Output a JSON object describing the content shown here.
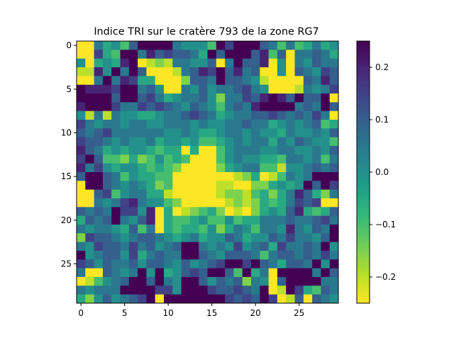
{
  "chart_data": {
    "type": "heatmap",
    "title": "Indice TRI sur le cratère 793 de la zone RG7",
    "xlabel": "",
    "ylabel": "",
    "rows": 30,
    "cols": 30,
    "x_ticks": [
      0,
      5,
      10,
      15,
      20,
      25
    ],
    "y_ticks": [
      0,
      5,
      10,
      15,
      20,
      25
    ],
    "colormap": "viridis_r",
    "vmin": -0.25,
    "vmax": 0.25,
    "colorbar": {
      "ticks": [
        0.2,
        0.1,
        0.0,
        -0.1,
        -0.2
      ],
      "tick_labels": [
        "0.2",
        "0.1",
        "0.0",
        "−0.1",
        "−0.2"
      ]
    },
    "values": [
      [
        -0.25,
        -0.25,
        0.05,
        -0.05,
        0.0,
        -0.1,
        0.1,
        0.25,
        0.25,
        0.25,
        0.25,
        0.05,
        0.0,
        0.0,
        0.0,
        -0.1,
        0.25,
        0.15,
        0.25,
        0.25,
        0.25,
        0.1,
        0.05,
        -0.1,
        0.05,
        -0.1,
        -0.05,
        0.05,
        -0.05,
        0.0
      ],
      [
        -0.25,
        -0.25,
        0.15,
        -0.05,
        -0.1,
        0.25,
        0.25,
        0.05,
        0.2,
        0.1,
        0.15,
        0.1,
        0.1,
        0.05,
        -0.05,
        0.25,
        0.1,
        0.25,
        0.25,
        0.25,
        0.1,
        0.2,
        -0.1,
        0.1,
        -0.25,
        0.05,
        0.05,
        0.1,
        0.05,
        -0.05
      ],
      [
        0.0,
        -0.25,
        -0.05,
        0.0,
        -0.05,
        0.2,
        0.25,
        -0.25,
        -0.2,
        -0.15,
        -0.2,
        0.05,
        0.05,
        0.0,
        0.0,
        0.1,
        -0.25,
        0.05,
        0.25,
        0.1,
        0.1,
        0.2,
        -0.25,
        0.0,
        -0.25,
        0.05,
        0.0,
        0.1,
        0.05,
        0.05
      ],
      [
        -0.2,
        -0.2,
        0.2,
        0.0,
        0.25,
        0.05,
        0.25,
        0.1,
        -0.25,
        -0.25,
        -0.25,
        -0.2,
        0.05,
        0.1,
        0.2,
        0.15,
        0.25,
        0.1,
        0.2,
        0.05,
        0.1,
        -0.25,
        -0.25,
        0.0,
        -0.25,
        0.1,
        0.05,
        0.0,
        0.15,
        0.1
      ],
      [
        -0.25,
        -0.25,
        0.05,
        0.25,
        0.05,
        0.2,
        0.15,
        -0.05,
        -0.05,
        -0.25,
        -0.25,
        -0.25,
        -0.15,
        0.1,
        0.1,
        0.05,
        0.25,
        0.1,
        0.1,
        0.05,
        0.0,
        -0.2,
        -0.25,
        -0.25,
        -0.25,
        -0.25,
        0.1,
        0.05,
        0.2,
        0.1
      ],
      [
        0.25,
        0.2,
        0.2,
        0.2,
        0.15,
        0.25,
        0.25,
        0.05,
        0.1,
        0.0,
        -0.25,
        -0.25,
        0.05,
        0.0,
        0.1,
        0.0,
        0.05,
        0.05,
        0.1,
        0.15,
        0.05,
        0.0,
        -0.25,
        -0.25,
        -0.25,
        -0.2,
        0.05,
        0.0,
        0.05,
        0.15
      ],
      [
        0.25,
        0.25,
        0.25,
        0.25,
        0.1,
        0.25,
        0.25,
        0.1,
        0.15,
        0.05,
        -0.05,
        0.0,
        0.05,
        0.05,
        0.1,
        0.0,
        -0.15,
        0.05,
        0.05,
        0.15,
        0.1,
        0.2,
        0.25,
        0.2,
        0.1,
        0.25,
        0.1,
        0.1,
        0.25,
        -0.25
      ],
      [
        0.2,
        0.25,
        0.25,
        0.25,
        0.15,
        0.05,
        0.05,
        0.15,
        0.1,
        0.15,
        0.1,
        0.05,
        0.0,
        0.1,
        0.05,
        0.0,
        -0.1,
        0.05,
        0.1,
        0.05,
        0.2,
        0.25,
        0.25,
        0.25,
        0.25,
        0.05,
        0.1,
        0.05,
        0.25,
        0.1
      ],
      [
        0.0,
        -0.2,
        0.05,
        -0.2,
        0.05,
        0.0,
        0.0,
        -0.05,
        -0.05,
        0.0,
        0.05,
        0.05,
        0.1,
        0.15,
        0.1,
        0.05,
        -0.05,
        0.0,
        0.05,
        0.05,
        0.1,
        0.1,
        0.15,
        0.1,
        0.05,
        0.1,
        0.05,
        0.15,
        0.05,
        -0.25
      ],
      [
        0.15,
        0.05,
        0.0,
        0.05,
        0.05,
        0.0,
        0.05,
        0.05,
        0.0,
        0.0,
        0.05,
        0.05,
        0.05,
        0.0,
        0.05,
        0.0,
        0.0,
        0.05,
        0.05,
        0.1,
        0.05,
        0.05,
        -0.05,
        0.0,
        0.05,
        0.0,
        0.05,
        0.1,
        -0.1,
        -0.05
      ],
      [
        0.1,
        0.05,
        0.1,
        0.15,
        0.05,
        0.05,
        0.05,
        0.05,
        0.05,
        0.05,
        0.0,
        0.0,
        0.05,
        0.0,
        -0.05,
        -0.05,
        0.0,
        0.05,
        0.05,
        0.0,
        0.05,
        0.0,
        0.0,
        -0.05,
        0.05,
        0.0,
        0.0,
        0.05,
        0.0,
        0.1
      ],
      [
        0.15,
        0.1,
        0.1,
        0.05,
        0.0,
        0.05,
        0.0,
        0.0,
        0.05,
        -0.05,
        0.0,
        0.0,
        -0.05,
        0.0,
        -0.1,
        -0.1,
        -0.05,
        0.0,
        0.05,
        0.0,
        0.05,
        0.05,
        -0.05,
        0.05,
        0.0,
        0.1,
        0.05,
        0.0,
        0.0,
        -0.1
      ],
      [
        0.2,
        0.1,
        0.05,
        -0.05,
        0.0,
        -0.05,
        0.0,
        0.0,
        -0.05,
        -0.1,
        -0.05,
        -0.05,
        -0.25,
        -0.05,
        -0.25,
        -0.25,
        -0.1,
        0.0,
        0.05,
        0.05,
        0.05,
        0.0,
        0.0,
        0.05,
        0.05,
        0.0,
        0.0,
        0.05,
        0.0,
        0.1
      ],
      [
        0.15,
        0.25,
        0.1,
        -0.1,
        -0.1,
        -0.15,
        -0.05,
        -0.15,
        -0.1,
        0.0,
        -0.1,
        -0.05,
        -0.1,
        -0.25,
        -0.25,
        -0.25,
        -0.1,
        0.0,
        0.05,
        0.0,
        0.0,
        -0.05,
        -0.05,
        -0.1,
        0.05,
        0.05,
        0.0,
        0.05,
        -0.1,
        0.05
      ],
      [
        0.2,
        0.05,
        0.15,
        0.0,
        -0.05,
        0.0,
        0.0,
        -0.05,
        -0.1,
        -0.05,
        -0.1,
        -0.15,
        -0.25,
        -0.25,
        -0.25,
        -0.25,
        -0.15,
        -0.05,
        0.0,
        0.05,
        0.05,
        -0.1,
        -0.1,
        -0.2,
        0.0,
        0.0,
        0.05,
        0.1,
        0.05,
        0.1
      ],
      [
        0.1,
        0.25,
        0.25,
        0.1,
        0.05,
        -0.1,
        0.0,
        -0.05,
        -0.05,
        -0.1,
        -0.1,
        -0.25,
        -0.25,
        -0.25,
        -0.25,
        -0.25,
        -0.25,
        -0.25,
        -0.2,
        -0.15,
        -0.05,
        -0.25,
        -0.2,
        -0.1,
        0.05,
        0.0,
        0.05,
        0.25,
        0.25,
        0.25
      ],
      [
        -0.25,
        0.25,
        0.25,
        0.1,
        0.05,
        0.0,
        0.05,
        0.0,
        -0.05,
        -0.15,
        -0.1,
        -0.25,
        -0.25,
        -0.25,
        -0.25,
        -0.25,
        -0.2,
        -0.2,
        -0.25,
        -0.25,
        -0.15,
        -0.15,
        -0.05,
        0.0,
        -0.05,
        0.0,
        0.25,
        0.1,
        0.25,
        0.15
      ],
      [
        -0.25,
        -0.25,
        0.1,
        0.15,
        -0.1,
        0.0,
        0.05,
        0.05,
        -0.05,
        -0.05,
        -0.2,
        -0.25,
        -0.25,
        -0.25,
        -0.25,
        -0.25,
        -0.2,
        -0.15,
        -0.15,
        -0.2,
        -0.1,
        -0.05,
        -0.15,
        -0.05,
        0.05,
        0.2,
        0.1,
        -0.05,
        -0.15,
        0.05
      ],
      [
        -0.25,
        -0.25,
        0.05,
        0.0,
        0.05,
        0.15,
        0.2,
        0.05,
        0.0,
        0.0,
        -0.1,
        -0.15,
        -0.25,
        -0.25,
        -0.25,
        -0.25,
        -0.25,
        -0.2,
        -0.15,
        -0.2,
        -0.15,
        -0.05,
        -0.1,
        -0.05,
        0.05,
        0.15,
        0.1,
        0.15,
        -0.25,
        -0.25
      ],
      [
        0.1,
        0.05,
        0.1,
        0.05,
        0.25,
        0.15,
        0.15,
        0.0,
        0.2,
        -0.25,
        -0.05,
        -0.25,
        -0.2,
        -0.15,
        -0.1,
        -0.05,
        -0.15,
        -0.25,
        -0.2,
        -0.25,
        -0.15,
        -0.05,
        0.0,
        -0.05,
        0.1,
        0.2,
        -0.05,
        -0.1,
        -0.05,
        0.1
      ],
      [
        -0.05,
        0.1,
        0.05,
        0.1,
        0.25,
        0.05,
        0.0,
        0.1,
        0.2,
        -0.25,
        -0.05,
        -0.1,
        -0.1,
        -0.05,
        0.0,
        -0.1,
        -0.1,
        0.0,
        -0.1,
        -0.05,
        -0.05,
        0.05,
        0.05,
        0.05,
        0.1,
        0.05,
        0.05,
        0.1,
        0.15,
        0.05
      ],
      [
        0.05,
        0.0,
        0.05,
        0.05,
        0.0,
        -0.05,
        0.1,
        -0.1,
        0.05,
        -0.25,
        -0.05,
        -0.1,
        -0.05,
        -0.05,
        -0.1,
        0.0,
        -0.15,
        -0.05,
        0.05,
        0.0,
        -0.1,
        0.05,
        0.05,
        0.0,
        0.2,
        0.05,
        0.0,
        0.1,
        0.05,
        0.25
      ],
      [
        -0.15,
        0.15,
        0.1,
        0.1,
        0.05,
        0.0,
        0.05,
        0.1,
        0.1,
        0.05,
        0.0,
        -0.05,
        0.0,
        0.05,
        -0.05,
        0.0,
        0.0,
        0.1,
        0.05,
        -0.05,
        0.0,
        0.0,
        0.1,
        0.05,
        0.15,
        0.05,
        0.05,
        0.0,
        0.1,
        0.25
      ],
      [
        0.05,
        0.0,
        0.15,
        0.1,
        0.1,
        0.05,
        0.15,
        0.05,
        0.1,
        0.0,
        0.05,
        0.1,
        0.25,
        0.25,
        0.05,
        0.0,
        0.05,
        0.0,
        0.15,
        0.0,
        0.05,
        0.1,
        -0.05,
        0.15,
        0.05,
        0.05,
        0.1,
        0.05,
        0.25,
        0.0
      ],
      [
        0.25,
        0.0,
        0.05,
        0.1,
        0.1,
        0.0,
        0.15,
        -0.05,
        0.05,
        0.1,
        0.05,
        0.05,
        0.25,
        0.25,
        0.1,
        0.05,
        0.0,
        0.1,
        0.1,
        0.1,
        0.05,
        -0.1,
        0.05,
        0.1,
        0.1,
        0.05,
        0.1,
        0.05,
        0.15,
        0.05
      ],
      [
        0.15,
        0.1,
        0.0,
        0.1,
        0.05,
        0.05,
        0.1,
        0.0,
        0.1,
        0.1,
        0.05,
        0.0,
        0.1,
        0.0,
        0.05,
        0.1,
        0.15,
        0.25,
        0.25,
        0.15,
        0.25,
        0.1,
        0.05,
        -0.05,
        0.1,
        0.1,
        0.05,
        0.25,
        0.0,
        0.25
      ],
      [
        0.05,
        -0.25,
        -0.25,
        0.1,
        0.05,
        0.0,
        0.05,
        0.25,
        0.0,
        0.25,
        -0.05,
        0.0,
        0.1,
        0.15,
        0.1,
        0.25,
        0.25,
        0.1,
        -0.1,
        0.25,
        -0.05,
        0.05,
        -0.25,
        0.25,
        0.25,
        0.25,
        0.25,
        0.05,
        0.25,
        0.1
      ],
      [
        -0.25,
        -0.2,
        -0.1,
        0.0,
        0.05,
        0.1,
        0.25,
        0.25,
        0.1,
        0.25,
        0.05,
        0.0,
        0.25,
        0.25,
        0.1,
        0.0,
        0.1,
        0.05,
        0.1,
        -0.15,
        0.05,
        0.0,
        -0.25,
        0.1,
        0.25,
        0.25,
        0.25,
        0.25,
        0.05,
        0.05
      ],
      [
        0.05,
        0.0,
        0.05,
        0.05,
        0.05,
        0.25,
        0.25,
        0.25,
        0.25,
        0.15,
        0.15,
        0.0,
        0.25,
        0.25,
        0.25,
        0.15,
        0.1,
        0.1,
        0.15,
        0.1,
        0.05,
        0.25,
        -0.25,
        -0.2,
        0.25,
        0.15,
        -0.05,
        -0.1,
        0.1,
        0.05
      ],
      [
        -0.05,
        -0.15,
        0.0,
        0.1,
        0.0,
        0.05,
        0.1,
        0.15,
        0.25,
        -0.25,
        0.25,
        0.25,
        0.25,
        0.25,
        0.25,
        0.25,
        0.25,
        0.15,
        0.1,
        0.15,
        0.1,
        0.25,
        0.15,
        -0.25,
        -0.2,
        0.1,
        -0.25,
        0.1,
        0.05,
        0.0
      ]
    ]
  }
}
